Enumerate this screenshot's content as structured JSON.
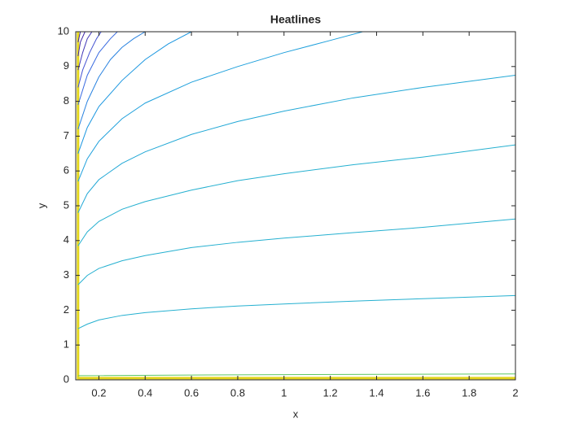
{
  "chart_data": {
    "type": "line",
    "title": "Heatlines",
    "xlabel": "x",
    "ylabel": "y",
    "xlim": [
      0.1,
      2
    ],
    "ylim": [
      0,
      10
    ],
    "xticks": [
      0.2,
      0.4,
      0.6,
      0.8,
      1,
      1.2,
      1.4,
      1.6,
      1.8,
      2
    ],
    "yticks": [
      0,
      1,
      2,
      3,
      4,
      5,
      6,
      7,
      8,
      9,
      10
    ],
    "grid": false,
    "series": [
      {
        "color": "#e3d51c",
        "width": 3,
        "x": [
          0.11,
          0.11,
          2
        ],
        "values": [
          10,
          0.05,
          0.05
        ]
      },
      {
        "color": "#5cc863",
        "width": 1,
        "x": [
          0.11,
          1,
          2
        ],
        "values": [
          0.12,
          0.15,
          0.17
        ]
      },
      {
        "color": "#25b0d0",
        "width": 1,
        "x": [
          0.11,
          0.15,
          0.2,
          0.3,
          0.4,
          0.6,
          0.8,
          1,
          1.3,
          1.6,
          2
        ],
        "values": [
          1.47,
          1.6,
          1.72,
          1.85,
          1.93,
          2.04,
          2.12,
          2.18,
          2.26,
          2.33,
          2.42
        ]
      },
      {
        "color": "#25b0d0",
        "width": 1,
        "x": [
          0.11,
          0.15,
          0.2,
          0.3,
          0.4,
          0.6,
          0.8,
          1,
          1.3,
          1.6,
          2
        ],
        "values": [
          2.73,
          3.0,
          3.2,
          3.42,
          3.57,
          3.8,
          3.95,
          4.07,
          4.23,
          4.38,
          4.62
        ]
      },
      {
        "color": "#25b0d0",
        "width": 1,
        "x": [
          0.11,
          0.15,
          0.2,
          0.3,
          0.4,
          0.6,
          0.8,
          1,
          1.3,
          1.6,
          2
        ],
        "values": [
          3.85,
          4.25,
          4.55,
          4.9,
          5.12,
          5.45,
          5.72,
          5.92,
          6.18,
          6.4,
          6.75
        ]
      },
      {
        "color": "#22a8d6",
        "width": 1,
        "x": [
          0.11,
          0.15,
          0.2,
          0.3,
          0.4,
          0.6,
          0.8,
          1,
          1.3,
          1.6,
          2
        ],
        "values": [
          4.8,
          5.35,
          5.75,
          6.22,
          6.55,
          7.05,
          7.42,
          7.72,
          8.1,
          8.4,
          8.75
        ]
      },
      {
        "color": "#1fa0dc",
        "width": 1,
        "x": [
          0.11,
          0.15,
          0.2,
          0.3,
          0.4,
          0.6,
          0.8,
          1,
          1.2,
          1.34
        ],
        "values": [
          5.7,
          6.35,
          6.85,
          7.5,
          7.95,
          8.55,
          9.0,
          9.4,
          9.75,
          10
        ]
      },
      {
        "color": "#1a96e0",
        "width": 1,
        "x": [
          0.11,
          0.15,
          0.2,
          0.3,
          0.4,
          0.5,
          0.6
        ],
        "values": [
          6.5,
          7.25,
          7.85,
          8.6,
          9.2,
          9.65,
          10
        ]
      },
      {
        "color": "#2a83e0",
        "width": 1,
        "x": [
          0.11,
          0.15,
          0.2,
          0.25,
          0.3,
          0.35,
          0.4
        ],
        "values": [
          7.2,
          8.0,
          8.7,
          9.2,
          9.55,
          9.8,
          10
        ]
      },
      {
        "color": "#3a6be0",
        "width": 1,
        "x": [
          0.11,
          0.15,
          0.2,
          0.25,
          0.28
        ],
        "values": [
          7.9,
          8.75,
          9.4,
          9.8,
          10
        ]
      },
      {
        "color": "#4553d2",
        "width": 1,
        "x": [
          0.11,
          0.13,
          0.16,
          0.19,
          0.21
        ],
        "values": [
          8.4,
          8.9,
          9.4,
          9.8,
          10
        ]
      },
      {
        "color": "#4238b8",
        "width": 1,
        "x": [
          0.11,
          0.13,
          0.15,
          0.17
        ],
        "values": [
          8.9,
          9.4,
          9.8,
          10
        ]
      },
      {
        "color": "#3e26a8",
        "width": 1,
        "x": [
          0.11,
          0.12,
          0.14
        ],
        "values": [
          9.3,
          9.7,
          10
        ]
      },
      {
        "color": "#3e26a8",
        "width": 1,
        "x": [
          0.11,
          0.12
        ],
        "values": [
          9.7,
          10
        ]
      }
    ]
  }
}
